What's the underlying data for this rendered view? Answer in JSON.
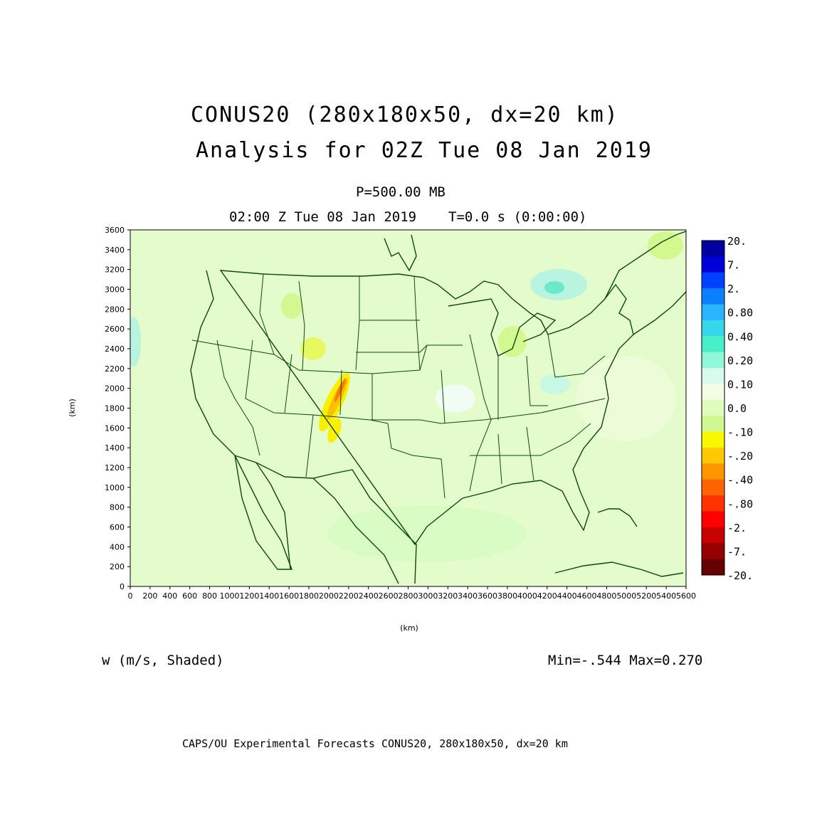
{
  "title": {
    "line1": "CONUS20 (280x180x50, dx=20 km)",
    "line2": "Analysis for 02Z Tue 08 Jan 2019"
  },
  "level": "P=500.00 MB",
  "valid_time": "02:00 Z Tue 08 Jan 2019",
  "forecast_time": "T=0.0 s (0:00:00)",
  "axes": {
    "x_label": "(km)",
    "y_label": "(km)",
    "x_ticks": [
      "0",
      "200",
      "400",
      "600",
      "800",
      "1000",
      "1200",
      "1400",
      "1600",
      "1800",
      "2000",
      "2200",
      "2400",
      "2600",
      "2800",
      "3000",
      "3200",
      "3400",
      "3600",
      "3800",
      "4000",
      "4200",
      "4400",
      "4600",
      "4800",
      "5000",
      "5200",
      "5400",
      "5600"
    ],
    "y_ticks": [
      "0",
      "200",
      "400",
      "600",
      "800",
      "1000",
      "1200",
      "1400",
      "1600",
      "1800",
      "2000",
      "2200",
      "2400",
      "2600",
      "2800",
      "3000",
      "3200",
      "3400",
      "3600"
    ]
  },
  "colorbar": {
    "labels": [
      "20.",
      "7.",
      "2.",
      "0.80",
      "0.40",
      "0.20",
      "0.10",
      "0.0",
      "-.10",
      "-.20",
      "-.40",
      "-.80",
      "-2.",
      "-7.",
      "-20."
    ],
    "colors": [
      "#0000a0",
      "#0000d8",
      "#0040ff",
      "#0a80ff",
      "#28b4ff",
      "#34d8e8",
      "#48f0c8",
      "#90f8d8",
      "#d8fcec",
      "#f4fce4",
      "#e0fcbc",
      "#d0f890",
      "#f8f800",
      "#ffc800",
      "#ff9600",
      "#ff6400",
      "#ff3200",
      "#ff0000",
      "#c80000",
      "#960000",
      "#640000"
    ]
  },
  "variable_label": "w (m/s, Shaded)",
  "min_max": "Min=-.544 Max=0.270",
  "footer": "CAPS/OU Experimental Forecasts  CONUS20, 280x180x50, dx=20 km",
  "colors": {
    "map_background": "#e4fccc",
    "state_lines": "#0a4a0a"
  }
}
